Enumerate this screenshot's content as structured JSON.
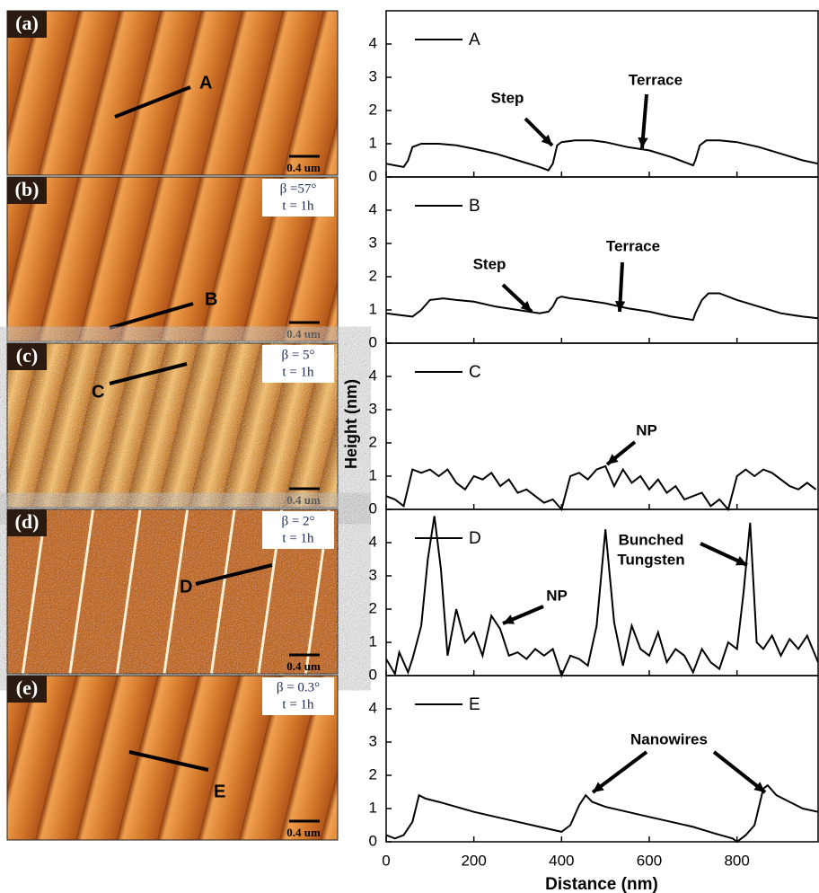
{
  "images": [
    {
      "label": "(a)",
      "profile": "A",
      "scale_bar": "0.4 um"
    },
    {
      "label": "(b)",
      "profile": "B",
      "scale_bar": "0.4 um",
      "beta": "β =57°",
      "time": "t = 1h"
    },
    {
      "label": "(c)",
      "profile": "C",
      "scale_bar": "0.4 um",
      "beta": "β = 5°",
      "time": "t = 1h"
    },
    {
      "label": "(d)",
      "profile": "D",
      "scale_bar": "0.4 um",
      "beta": "β = 2°",
      "time": "t = 1h"
    },
    {
      "label": "(e)",
      "profile": "E",
      "scale_bar": "0.4 um",
      "beta": "β = 0.3°",
      "time": "t = 1h"
    }
  ],
  "chart_data": [
    {
      "type": "line",
      "x": [
        0,
        20,
        40,
        50,
        60,
        80,
        120,
        160,
        200,
        250,
        300,
        350,
        370,
        380,
        390,
        400,
        430,
        470,
        500,
        550,
        600,
        650,
        700,
        705,
        715,
        730,
        760,
        800,
        850,
        900,
        950,
        985
      ],
      "series": [
        {
          "name": "A",
          "color": "#000000",
          "values": [
            0.4,
            0.35,
            0.3,
            0.5,
            0.9,
            1.0,
            1.0,
            0.95,
            0.85,
            0.7,
            0.5,
            0.3,
            0.2,
            0.4,
            0.95,
            1.05,
            1.1,
            1.1,
            1.05,
            0.9,
            0.8,
            0.6,
            0.35,
            0.5,
            0.95,
            1.1,
            1.1,
            1.05,
            0.9,
            0.7,
            0.5,
            0.4
          ]
        }
      ],
      "xlim": [
        0,
        985
      ],
      "ylim": [
        0,
        5
      ],
      "xticks": [
        0,
        200,
        400,
        600,
        800
      ],
      "yticks": [
        0,
        1,
        2,
        3,
        4
      ],
      "annotations": [
        {
          "text": "Step"
        },
        {
          "text": "Terrace"
        }
      ]
    },
    {
      "type": "line",
      "x": [
        0,
        30,
        60,
        80,
        100,
        130,
        160,
        200,
        250,
        300,
        350,
        370,
        380,
        390,
        400,
        420,
        450,
        500,
        550,
        600,
        650,
        700,
        705,
        720,
        735,
        760,
        800,
        850,
        900,
        950,
        985
      ],
      "series": [
        {
          "name": "B",
          "color": "#000000",
          "values": [
            0.9,
            0.85,
            0.8,
            1.0,
            1.3,
            1.35,
            1.3,
            1.25,
            1.1,
            1.0,
            0.9,
            0.95,
            1.1,
            1.35,
            1.4,
            1.35,
            1.3,
            1.2,
            1.05,
            0.95,
            0.8,
            0.7,
            0.9,
            1.3,
            1.5,
            1.5,
            1.3,
            1.1,
            0.9,
            0.8,
            0.75
          ]
        }
      ],
      "xlim": [
        0,
        985
      ],
      "ylim": [
        0,
        5
      ],
      "xticks": [
        0,
        200,
        400,
        600,
        800
      ],
      "yticks": [
        0,
        1,
        2,
        3,
        4
      ],
      "annotations": [
        {
          "text": "Step"
        },
        {
          "text": "Terrace"
        }
      ]
    },
    {
      "type": "line",
      "x": [
        0,
        20,
        40,
        60,
        80,
        100,
        120,
        140,
        160,
        180,
        200,
        220,
        240,
        260,
        280,
        300,
        320,
        340,
        360,
        380,
        400,
        420,
        440,
        460,
        480,
        500,
        520,
        540,
        560,
        580,
        600,
        620,
        640,
        660,
        680,
        700,
        720,
        740,
        760,
        780,
        800,
        820,
        840,
        860,
        880,
        900,
        920,
        940,
        960,
        980
      ],
      "series": [
        {
          "name": "C",
          "color": "#000000",
          "values": [
            0.4,
            0.3,
            0.1,
            1.2,
            1.1,
            1.2,
            1.0,
            1.2,
            0.8,
            0.6,
            1.0,
            0.9,
            1.1,
            0.7,
            0.9,
            0.5,
            0.6,
            0.4,
            0.2,
            0.3,
            0.0,
            1.0,
            1.1,
            0.9,
            1.2,
            1.3,
            0.7,
            1.2,
            0.8,
            1.0,
            0.6,
            0.9,
            0.5,
            0.7,
            0.3,
            0.4,
            0.5,
            0.1,
            0.3,
            0.0,
            1.0,
            1.2,
            1.0,
            1.2,
            1.1,
            0.9,
            0.7,
            0.6,
            0.8,
            0.6
          ]
        }
      ],
      "xlim": [
        0,
        985
      ],
      "ylim": [
        0,
        5
      ],
      "xticks": [
        0,
        200,
        400,
        600,
        800
      ],
      "yticks": [
        0,
        1,
        2,
        3,
        4
      ],
      "ylabel": "Height (nm)",
      "annotations": [
        {
          "text": "NP"
        }
      ]
    },
    {
      "type": "line",
      "x": [
        0,
        20,
        30,
        50,
        60,
        80,
        95,
        110,
        125,
        140,
        160,
        180,
        200,
        220,
        240,
        260,
        280,
        300,
        320,
        340,
        360,
        380,
        400,
        420,
        440,
        460,
        480,
        500,
        520,
        540,
        560,
        580,
        600,
        620,
        640,
        660,
        680,
        700,
        720,
        740,
        760,
        780,
        800,
        815,
        830,
        845,
        860,
        880,
        900,
        920,
        940,
        960,
        985
      ],
      "series": [
        {
          "name": "D",
          "color": "#000000",
          "values": [
            0.5,
            0.05,
            0.7,
            0.1,
            0.5,
            1.5,
            3.5,
            4.8,
            3.2,
            0.6,
            2.0,
            1.0,
            1.3,
            0.6,
            1.8,
            1.4,
            0.6,
            0.7,
            0.5,
            0.8,
            0.6,
            0.8,
            0.0,
            0.6,
            0.5,
            0.3,
            1.5,
            4.4,
            1.6,
            0.3,
            1.5,
            0.8,
            0.6,
            1.3,
            0.4,
            0.8,
            0.6,
            0.1,
            0.8,
            0.4,
            0.2,
            1.0,
            0.8,
            2.5,
            4.6,
            1.0,
            0.8,
            1.2,
            0.6,
            1.1,
            0.8,
            1.2,
            0.4
          ]
        }
      ],
      "xlim": [
        0,
        985
      ],
      "ylim": [
        0,
        5
      ],
      "xticks": [
        0,
        200,
        400,
        600,
        800
      ],
      "yticks": [
        0,
        1,
        2,
        3,
        4
      ],
      "annotations": [
        {
          "text": "NP"
        },
        {
          "lines": [
            "Bunched",
            "Tungsten"
          ]
        }
      ]
    },
    {
      "type": "line",
      "x": [
        0,
        20,
        40,
        60,
        75,
        90,
        120,
        160,
        200,
        250,
        300,
        350,
        400,
        420,
        440,
        455,
        470,
        500,
        550,
        600,
        650,
        700,
        750,
        790,
        800,
        820,
        840,
        860,
        870,
        890,
        920,
        950,
        985
      ],
      "series": [
        {
          "name": "E",
          "color": "#000000",
          "values": [
            0.2,
            0.1,
            0.2,
            0.6,
            1.4,
            1.3,
            1.2,
            1.05,
            0.9,
            0.75,
            0.6,
            0.45,
            0.3,
            0.5,
            1.1,
            1.4,
            1.2,
            1.05,
            0.9,
            0.75,
            0.6,
            0.45,
            0.25,
            0.1,
            0.0,
            0.2,
            0.5,
            1.6,
            1.7,
            1.4,
            1.2,
            1.0,
            0.9
          ]
        }
      ],
      "xlim": [
        0,
        985
      ],
      "ylim": [
        0,
        5
      ],
      "xticks": [
        0,
        200,
        400,
        600,
        800
      ],
      "yticks": [
        0,
        1,
        2,
        3,
        4
      ],
      "xlabel": "Distance (nm)",
      "annotations": [
        {
          "text": "Nanowires"
        }
      ]
    }
  ]
}
